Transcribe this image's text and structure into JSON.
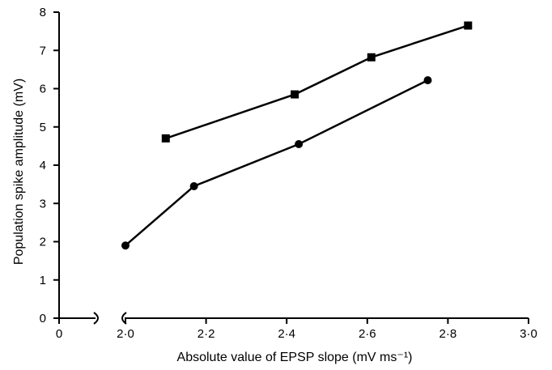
{
  "chart_data": {
    "type": "line",
    "title": "",
    "xlabel": "Absolute value of EPSP slope (mV ms⁻¹)",
    "ylabel": "Population spike amplitude (mV)",
    "x_axis_break": {
      "from": 0,
      "to": 2.0
    },
    "xlim": [
      0,
      3.0
    ],
    "ylim": [
      0,
      8
    ],
    "x_ticks": [
      {
        "value": 0,
        "label": "0"
      },
      {
        "value": 2.0,
        "label": "2·0"
      },
      {
        "value": 2.2,
        "label": "2·2"
      },
      {
        "value": 2.4,
        "label": "2·4"
      },
      {
        "value": 2.6,
        "label": "2·6"
      },
      {
        "value": 2.8,
        "label": "2·8"
      },
      {
        "value": 3.0,
        "label": "3·0"
      }
    ],
    "y_ticks": [
      {
        "value": 0,
        "label": "0"
      },
      {
        "value": 1,
        "label": "1"
      },
      {
        "value": 2,
        "label": "2"
      },
      {
        "value": 3,
        "label": "3"
      },
      {
        "value": 4,
        "label": "4"
      },
      {
        "value": 5,
        "label": "5"
      },
      {
        "value": 6,
        "label": "6"
      },
      {
        "value": 7,
        "label": "7"
      },
      {
        "value": 8,
        "label": "8"
      }
    ],
    "grid": false,
    "legend": "none",
    "series": [
      {
        "marker": "square",
        "color": "#000000",
        "points": [
          {
            "x": 2.1,
            "y": 4.7
          },
          {
            "x": 2.42,
            "y": 5.85
          },
          {
            "x": 2.61,
            "y": 6.82
          },
          {
            "x": 2.85,
            "y": 7.65
          }
        ]
      },
      {
        "marker": "circle",
        "color": "#000000",
        "points": [
          {
            "x": 2.0,
            "y": 1.9
          },
          {
            "x": 2.17,
            "y": 3.45
          },
          {
            "x": 2.43,
            "y": 4.55
          },
          {
            "x": 2.75,
            "y": 6.22
          }
        ]
      }
    ]
  }
}
